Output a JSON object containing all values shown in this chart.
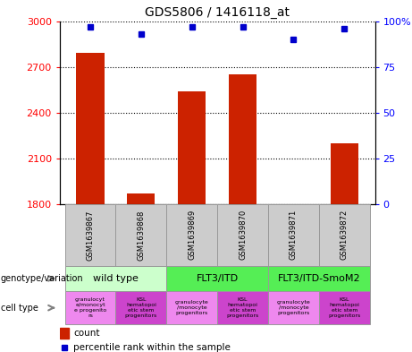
{
  "title": "GDS5806 / 1416118_at",
  "samples": [
    "GSM1639867",
    "GSM1639868",
    "GSM1639869",
    "GSM1639870",
    "GSM1639871",
    "GSM1639872"
  ],
  "counts": [
    2790,
    1870,
    2540,
    2650,
    1800,
    2200
  ],
  "percentiles": [
    97,
    93,
    97,
    97,
    90,
    96
  ],
  "ylim_left": [
    1800,
    3000
  ],
  "ylim_right": [
    0,
    100
  ],
  "yticks_left": [
    1800,
    2100,
    2400,
    2700,
    3000
  ],
  "yticks_right": [
    0,
    25,
    50,
    75,
    100
  ],
  "bar_color": "#cc2200",
  "dot_color": "#0000cc",
  "genotype_groups": [
    {
      "label": "wild type",
      "start": 0,
      "end": 2,
      "color": "#ccffcc"
    },
    {
      "label": "FLT3/ITD",
      "start": 2,
      "end": 4,
      "color": "#44ee44"
    },
    {
      "label": "FLT3/ITD-SmoM2",
      "start": 4,
      "end": 6,
      "color": "#44ee44"
    }
  ],
  "cell_type_labels": [
    "granulocyt\ne/monocyt\ne progenito\nrs",
    "KSL\nhematopoi\netic stem\nprogenitors",
    "granulocyte\n/monocyte\nprogenitors",
    "KSL\nhematopoi\netic stem\nprogenitors",
    "granulocyte\n/monocyte\nprogenitors",
    "KSL\nhematopoi\netic stem\nprogenitors"
  ],
  "cell_colors": [
    "#ee88ee",
    "#cc44cc",
    "#ee88ee",
    "#cc44cc",
    "#ee88ee",
    "#cc44cc"
  ],
  "genotype_label": "genotype/variation",
  "celltype_label": "cell type",
  "legend_count_label": "count",
  "legend_pct_label": "percentile rank within the sample",
  "sample_bg_color": "#cccccc",
  "sample_border_color": "#999999"
}
